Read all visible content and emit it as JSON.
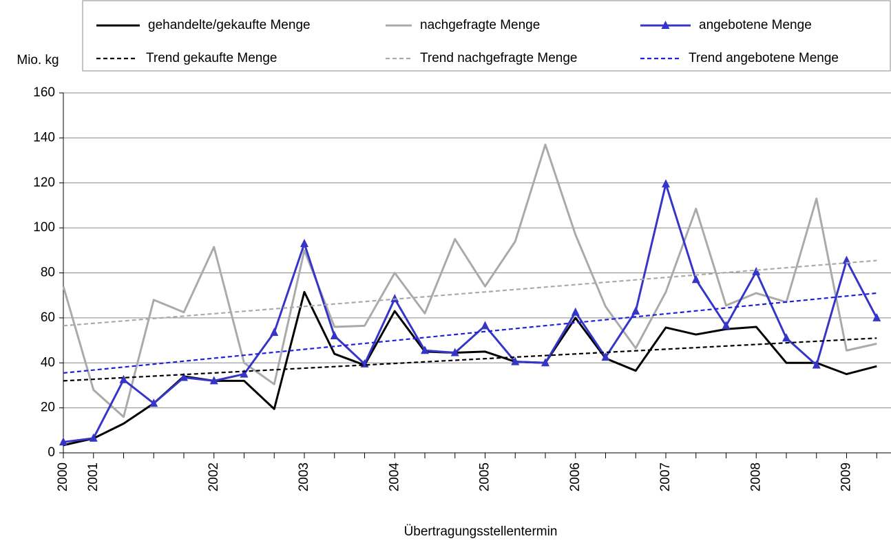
{
  "chart_data": {
    "type": "line",
    "y_label": "Mio. kg",
    "x_label": "Übertragungsstellentermin",
    "categories": [
      "2000",
      "2001",
      null,
      null,
      null,
      "2002",
      null,
      null,
      "2003",
      null,
      null,
      "2004",
      null,
      null,
      "2005",
      null,
      null,
      "2006",
      null,
      null,
      "2007",
      null,
      null,
      "2008",
      null,
      null,
      "2009",
      null
    ],
    "ylim": [
      0,
      160
    ],
    "yticks": [
      0,
      20,
      40,
      60,
      80,
      100,
      120,
      140,
      160
    ],
    "grid": true,
    "series": [
      {
        "name": "gehandelte/gekaufte Menge",
        "color": "#000000",
        "values": [
          3.4,
          6.4,
          13,
          22,
          34,
          32,
          32,
          19.5,
          71.5,
          44,
          39,
          63,
          45,
          44.5,
          45,
          40.5,
          40,
          60,
          42,
          36.5,
          55.7,
          52.6,
          55,
          56,
          40,
          40,
          35,
          38.5
        ]
      },
      {
        "name": "nachgefragte Menge",
        "color": "#aaaaaa",
        "values": [
          74,
          28,
          16,
          68,
          62.5,
          91.5,
          40,
          30.5,
          90,
          56,
          56.5,
          80,
          62,
          95,
          74,
          94,
          137,
          97,
          65,
          46.5,
          71.5,
          108.5,
          65.5,
          71,
          67,
          113,
          45.5,
          48.5
        ]
      },
      {
        "name": "angebotene Menge",
        "color": "#3535c8",
        "marker": "triangle",
        "values": [
          4.8,
          6.5,
          32.5,
          22,
          33.5,
          32,
          35,
          53.5,
          93,
          52,
          39.5,
          68.5,
          45.5,
          44.5,
          56.5,
          40.5,
          40,
          62.5,
          42.5,
          63,
          119.5,
          77,
          56.5,
          80.5,
          51,
          39,
          85.5,
          60
        ]
      },
      {
        "name": "Trend gekaufte Menge",
        "color": "#000000",
        "dashed": true,
        "trend": [
          32,
          51
        ]
      },
      {
        "name": "Trend nachgefragte Menge",
        "color": "#aaaaaa",
        "dashed": true,
        "trend": [
          56.5,
          85.5
        ]
      },
      {
        "name": "Trend angebotene Menge",
        "color": "#2020e0",
        "dashed": true,
        "trend": [
          35.5,
          71
        ]
      }
    ]
  }
}
